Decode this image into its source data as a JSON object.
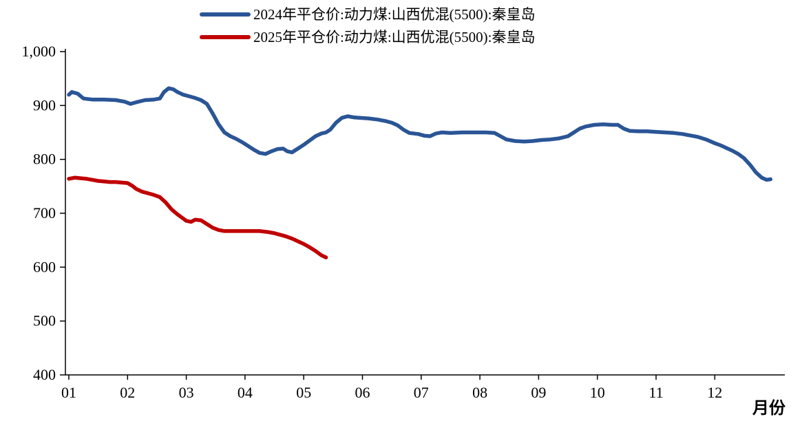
{
  "axes": {
    "y_ticks": [
      {
        "value": 1000,
        "label": "1,000"
      },
      {
        "value": 900,
        "label": "900"
      },
      {
        "value": 800,
        "label": "800"
      },
      {
        "value": 700,
        "label": "700"
      },
      {
        "value": 600,
        "label": "600"
      },
      {
        "value": 500,
        "label": "500"
      },
      {
        "value": 400,
        "label": "400"
      }
    ],
    "x_ticks": [
      "01",
      "02",
      "03",
      "04",
      "05",
      "06",
      "07",
      "08",
      "09",
      "10",
      "11",
      "12"
    ],
    "x_axis_label": "月份"
  },
  "chart_data": {
    "type": "line",
    "title": "",
    "xlabel": "月份",
    "ylabel": "",
    "ylim": [
      400,
      1000
    ],
    "y_tick_step": 100,
    "x_range_months": [
      1,
      12.95
    ],
    "grid": false,
    "legend_position": "top-center",
    "series": [
      {
        "name": "2024年平仓价:动力煤:山西优混(5500):秦皇岛",
        "color": "#2a5596",
        "points": [
          [
            1.0,
            920
          ],
          [
            1.05,
            925
          ],
          [
            1.15,
            922
          ],
          [
            1.25,
            913
          ],
          [
            1.4,
            911
          ],
          [
            1.6,
            911
          ],
          [
            1.8,
            910
          ],
          [
            1.95,
            907
          ],
          [
            2.05,
            903
          ],
          [
            2.15,
            906
          ],
          [
            2.3,
            910
          ],
          [
            2.45,
            911
          ],
          [
            2.55,
            913
          ],
          [
            2.62,
            925
          ],
          [
            2.7,
            932
          ],
          [
            2.78,
            930
          ],
          [
            2.85,
            925
          ],
          [
            2.95,
            920
          ],
          [
            3.05,
            917
          ],
          [
            3.15,
            914
          ],
          [
            3.25,
            910
          ],
          [
            3.35,
            903
          ],
          [
            3.45,
            885
          ],
          [
            3.55,
            865
          ],
          [
            3.65,
            850
          ],
          [
            3.75,
            843
          ],
          [
            3.85,
            838
          ],
          [
            3.95,
            832
          ],
          [
            4.05,
            825
          ],
          [
            4.15,
            818
          ],
          [
            4.25,
            812
          ],
          [
            4.35,
            810
          ],
          [
            4.45,
            815
          ],
          [
            4.55,
            819
          ],
          [
            4.65,
            820
          ],
          [
            4.72,
            815
          ],
          [
            4.8,
            813
          ],
          [
            4.9,
            820
          ],
          [
            5.0,
            827
          ],
          [
            5.1,
            835
          ],
          [
            5.2,
            843
          ],
          [
            5.3,
            848
          ],
          [
            5.38,
            850
          ],
          [
            5.45,
            855
          ],
          [
            5.55,
            868
          ],
          [
            5.65,
            877
          ],
          [
            5.75,
            880
          ],
          [
            5.85,
            878
          ],
          [
            5.95,
            877
          ],
          [
            6.1,
            876
          ],
          [
            6.25,
            874
          ],
          [
            6.4,
            871
          ],
          [
            6.5,
            868
          ],
          [
            6.6,
            863
          ],
          [
            6.7,
            855
          ],
          [
            6.8,
            849
          ],
          [
            6.95,
            847
          ],
          [
            7.05,
            844
          ],
          [
            7.15,
            843
          ],
          [
            7.25,
            848
          ],
          [
            7.35,
            850
          ],
          [
            7.5,
            849
          ],
          [
            7.7,
            850
          ],
          [
            7.9,
            850
          ],
          [
            8.1,
            850
          ],
          [
            8.25,
            849
          ],
          [
            8.35,
            843
          ],
          [
            8.45,
            837
          ],
          [
            8.6,
            834
          ],
          [
            8.75,
            833
          ],
          [
            8.9,
            834
          ],
          [
            9.05,
            836
          ],
          [
            9.2,
            837
          ],
          [
            9.35,
            839
          ],
          [
            9.5,
            843
          ],
          [
            9.6,
            850
          ],
          [
            9.7,
            857
          ],
          [
            9.8,
            861
          ],
          [
            9.95,
            864
          ],
          [
            10.1,
            865
          ],
          [
            10.25,
            864
          ],
          [
            10.35,
            864
          ],
          [
            10.45,
            857
          ],
          [
            10.55,
            853
          ],
          [
            10.7,
            852
          ],
          [
            10.85,
            852
          ],
          [
            11.0,
            851
          ],
          [
            11.15,
            850
          ],
          [
            11.3,
            849
          ],
          [
            11.45,
            847
          ],
          [
            11.55,
            845
          ],
          [
            11.7,
            842
          ],
          [
            11.85,
            837
          ],
          [
            12.0,
            830
          ],
          [
            12.1,
            826
          ],
          [
            12.2,
            821
          ],
          [
            12.3,
            816
          ],
          [
            12.4,
            810
          ],
          [
            12.5,
            802
          ],
          [
            12.6,
            790
          ],
          [
            12.7,
            776
          ],
          [
            12.8,
            766
          ],
          [
            12.88,
            762
          ],
          [
            12.95,
            763
          ]
        ]
      },
      {
        "name": "2025年平仓价:动力煤:山西优混(5500):秦皇岛",
        "color": "#c00000",
        "points": [
          [
            1.0,
            764
          ],
          [
            1.1,
            766
          ],
          [
            1.2,
            765
          ],
          [
            1.3,
            764
          ],
          [
            1.4,
            762
          ],
          [
            1.5,
            760
          ],
          [
            1.6,
            759
          ],
          [
            1.7,
            758
          ],
          [
            1.8,
            758
          ],
          [
            1.9,
            757
          ],
          [
            2.0,
            756
          ],
          [
            2.08,
            751
          ],
          [
            2.15,
            745
          ],
          [
            2.25,
            740
          ],
          [
            2.35,
            737
          ],
          [
            2.45,
            734
          ],
          [
            2.55,
            730
          ],
          [
            2.65,
            720
          ],
          [
            2.75,
            707
          ],
          [
            2.85,
            698
          ],
          [
            2.95,
            690
          ],
          [
            3.0,
            686
          ],
          [
            3.08,
            684
          ],
          [
            3.15,
            688
          ],
          [
            3.25,
            687
          ],
          [
            3.35,
            680
          ],
          [
            3.45,
            673
          ],
          [
            3.55,
            669
          ],
          [
            3.65,
            667
          ],
          [
            3.8,
            667
          ],
          [
            3.95,
            667
          ],
          [
            4.1,
            667
          ],
          [
            4.25,
            667
          ],
          [
            4.4,
            665
          ],
          [
            4.5,
            663
          ],
          [
            4.6,
            660
          ],
          [
            4.7,
            657
          ],
          [
            4.8,
            653
          ],
          [
            4.9,
            648
          ],
          [
            5.0,
            643
          ],
          [
            5.1,
            637
          ],
          [
            5.2,
            630
          ],
          [
            5.3,
            622
          ],
          [
            5.38,
            618
          ]
        ]
      }
    ]
  }
}
